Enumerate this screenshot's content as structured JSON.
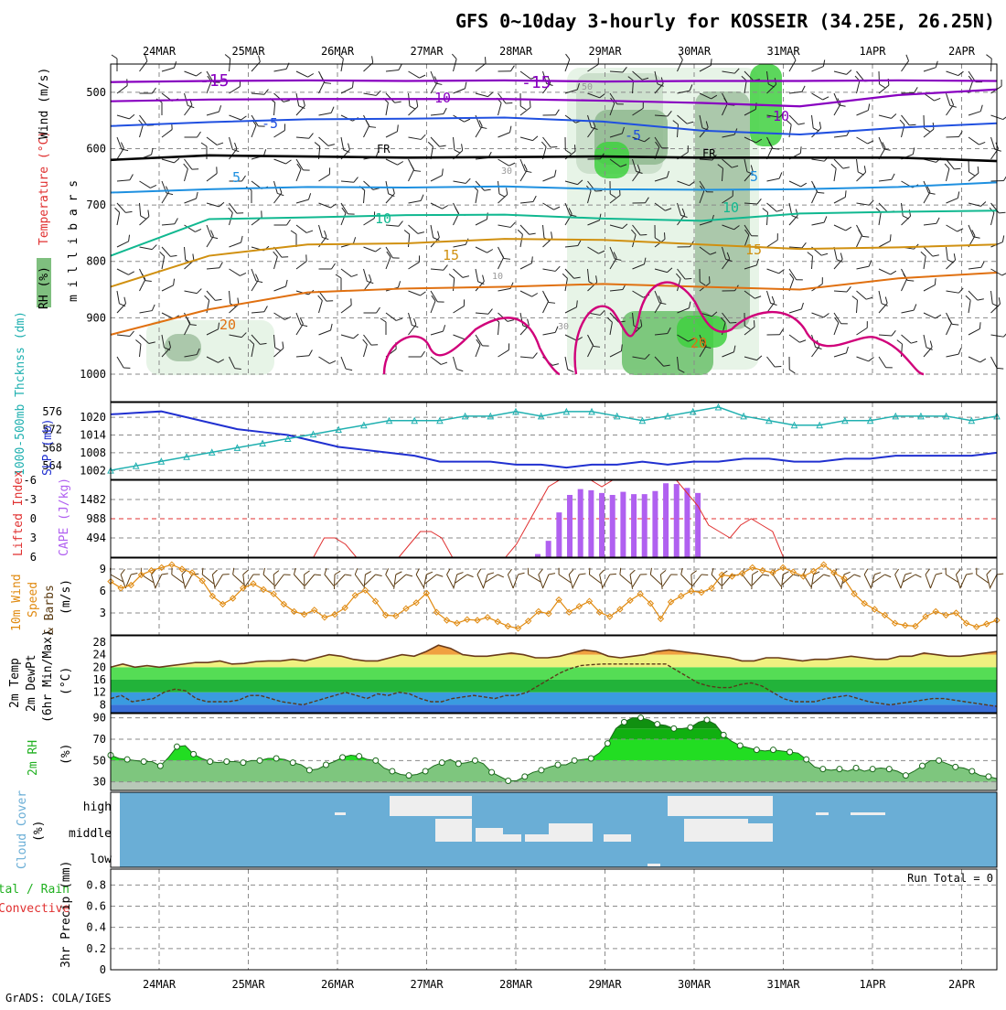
{
  "title": "GFS 0~10day 3-hourly for KOSSEIR (34.25E, 26.25N)",
  "footer": "GrADS: COLA/IGES",
  "dates": [
    "24MAR",
    "25MAR",
    "26MAR",
    "27MAR",
    "28MAR",
    "29MAR",
    "30MAR",
    "31MAR",
    "1APR",
    "2APR"
  ],
  "colors": {
    "frame": "#000000",
    "rh_dark": "#8aa88a",
    "rh_mid": "#6ed06e",
    "rh_bright": "#22cc22",
    "temp_m15": "#8800c0",
    "temp_m10": "#8800c0",
    "temp_m5": "#2050e0",
    "temp_0": "#000000",
    "temp_5": "#1e90e0",
    "temp_10": "#10b890",
    "temp_15": "#d09010",
    "temp_20": "#e07010",
    "temp_25": "#d0007a",
    "slp": "#2030d0",
    "thickness": "#20b0b0",
    "lifted_index": "#e03030",
    "cape": "#b060f0",
    "wind10m": "#e08a10",
    "barb": "#5a3a10",
    "cloud_bg": "#6aaed6",
    "cloud_gap": "#eeeeee"
  },
  "chart_data": [
    {
      "type": "heatmap",
      "panel": "upper-air",
      "ylabel_parts": [
        "RH (%)",
        "Temperature (°C)",
        "Wind (m/s)"
      ],
      "yaxis_name": "m i l l i b a r s",
      "yticks": [
        500,
        600,
        700,
        800,
        900,
        1000
      ],
      "ylim": [
        1000,
        450
      ],
      "contour_labels": {
        "m15": [
          "-15",
          "-15"
        ],
        "m10": [
          "-10",
          "-10"
        ],
        "m5": [
          "-5",
          "-5"
        ],
        "zero": [
          "FR",
          "FR"
        ],
        "p5": [
          "5",
          "5"
        ],
        "p10": [
          "10",
          "10"
        ],
        "p15": [
          "15",
          "15"
        ],
        "p20": [
          "20",
          "20"
        ],
        "rh": [
          "50",
          "30",
          "10",
          "30"
        ]
      },
      "isotherms": {
        "m15_mb": [
          482,
          480,
          479,
          480,
          479,
          481,
          480,
          480,
          479,
          480
        ],
        "m10_mb": [
          516,
          513,
          512,
          512,
          512,
          515,
          519,
          525,
          505,
          495
        ],
        "m5_mb": [
          560,
          553,
          548,
          547,
          545,
          552,
          568,
          575,
          563,
          555
        ],
        "zero_mb": [
          620,
          612,
          614,
          616,
          615,
          614,
          616,
          616,
          616,
          622
        ],
        "p5_mb": [
          678,
          672,
          668,
          669,
          667,
          672,
          673,
          672,
          668,
          660
        ],
        "p10_mb": [
          790,
          725,
          722,
          718,
          717,
          724,
          728,
          715,
          712,
          710
        ],
        "p15_mb": [
          845,
          790,
          770,
          768,
          760,
          762,
          770,
          778,
          775,
          770
        ],
        "p20_mb": [
          930,
          885,
          855,
          848,
          845,
          840,
          845,
          850,
          830,
          820
        ]
      }
    },
    {
      "type": "line",
      "panel": "slp-thickness",
      "ylabel_left": "1000-500mb Thcknss (dm)",
      "ylabel_right": "SLP (mb)",
      "yticks_left": [
        564,
        568,
        572,
        576
      ],
      "yticks_right": [
        1002,
        1008,
        1014,
        1020
      ],
      "series": [
        {
          "name": "SLP (mb)",
          "values": [
            1021,
            1021.5,
            1022,
            1020,
            1018,
            1016,
            1015,
            1014,
            1012,
            1010,
            1009,
            1008,
            1007,
            1005,
            1005,
            1005,
            1004,
            1004,
            1003,
            1004,
            1004,
            1005,
            1004,
            1005,
            1005,
            1006,
            1006,
            1005,
            1005,
            1006,
            1006,
            1007,
            1007,
            1007,
            1007,
            1008
          ]
        },
        {
          "name": "1000-500mb Thickness (dm)",
          "values": [
            563,
            564,
            565,
            566,
            567,
            568,
            569,
            570,
            571,
            572,
            573,
            574,
            574,
            574,
            575,
            575,
            576,
            575,
            576,
            576,
            575,
            574,
            575,
            576,
            577,
            575,
            574,
            573,
            573,
            574,
            574,
            575,
            575,
            575,
            574,
            575
          ]
        }
      ]
    },
    {
      "type": "bar",
      "panel": "cape-li",
      "ylabel_left": "Lifted Index",
      "ylabel_right": "CAPE (J/kg)",
      "yticks_li": [
        "-6",
        "-3",
        "0",
        "3",
        "6"
      ],
      "yticks_cape": [
        "1482",
        "988",
        "494"
      ],
      "series": [
        {
          "name": "Lifted Index",
          "values": [
            6,
            6,
            6,
            6,
            6,
            6,
            6,
            6,
            6,
            6,
            6,
            6,
            6,
            6,
            6,
            6,
            6,
            6,
            6,
            6,
            3,
            3,
            4,
            6,
            6,
            6,
            6,
            6,
            4,
            2,
            2,
            3,
            6,
            6,
            6,
            6,
            6,
            6,
            4,
            1,
            -2,
            -5,
            -6,
            -6,
            -6,
            -6,
            -5,
            -6,
            -6,
            -6,
            -6,
            -6,
            -6,
            -6,
            -4,
            -2,
            1,
            2,
            3,
            1,
            0,
            1,
            2,
            6,
            6,
            6,
            6,
            6,
            6,
            6,
            6,
            6,
            6,
            6,
            6,
            6,
            6,
            6,
            6,
            6,
            6,
            6,
            6,
            6
          ]
        },
        {
          "name": "CAPE (J/kg)",
          "values": [
            0,
            0,
            0,
            0,
            0,
            0,
            0,
            0,
            0,
            0,
            0,
            0,
            0,
            0,
            0,
            0,
            0,
            0,
            0,
            0,
            0,
            0,
            0,
            0,
            0,
            0,
            0,
            0,
            0,
            0,
            0,
            0,
            0,
            0,
            0,
            0,
            0,
            0,
            0,
            0,
            80,
            420,
            1150,
            1600,
            1750,
            1720,
            1650,
            1600,
            1680,
            1620,
            1620,
            1700,
            1900,
            1880,
            1780,
            1650,
            0,
            0,
            0,
            0,
            0,
            0,
            0,
            0,
            0,
            0,
            0,
            0,
            0,
            0,
            0,
            0,
            0,
            0,
            0,
            0,
            0,
            0,
            0,
            0,
            0,
            0,
            0,
            0
          ]
        }
      ]
    },
    {
      "type": "line",
      "panel": "wind10m",
      "ylabel_parts": [
        "10m Wind",
        "Speed",
        "& Barbs",
        "(m/s)"
      ],
      "yticks": [
        3,
        6,
        9
      ],
      "ylim": [
        0,
        10.5
      ],
      "series": [
        {
          "name": "10m Wind Speed",
          "values": [
            7.3,
            6.4,
            6.8,
            8.2,
            8.8,
            9.2,
            9.6,
            9.0,
            8.5,
            7.4,
            5.3,
            4.2,
            5.0,
            6.4,
            7.0,
            6.2,
            5.6,
            4.2,
            3.2,
            2.8,
            3.4,
            2.4,
            2.8,
            3.7,
            5.4,
            6.1,
            4.6,
            2.7,
            2.6,
            3.6,
            4.4,
            5.7,
            3.1,
            2.0,
            1.6,
            2.1,
            2.0,
            2.4,
            1.8,
            1.2,
            0.9,
            1.9,
            3.2,
            2.9,
            4.8,
            3.1,
            3.9,
            4.6,
            3.1,
            2.5,
            3.5,
            4.7,
            5.6,
            4.3,
            2.2,
            4.5,
            5.3,
            6.0,
            5.8,
            6.4,
            8.2,
            8.0,
            8.4,
            9.2,
            8.8,
            8.5,
            9.2,
            8.6,
            8.0,
            8.7,
            9.6,
            8.5,
            7.7,
            5.6,
            4.3,
            3.5,
            2.7,
            1.6,
            1.3,
            1.2,
            2.5,
            3.2,
            2.7,
            3.0,
            1.6,
            1.1,
            1.5,
            2.0
          ]
        }
      ]
    },
    {
      "type": "area",
      "panel": "temp2m",
      "ylabel_parts": [
        "2m Temp",
        "2m DewPt",
        "(6hr Min/Max)",
        "(°C)"
      ],
      "yticks": [
        8,
        12,
        16,
        20,
        24,
        28
      ],
      "series": [
        {
          "name": "2m Temp",
          "values": [
            20,
            21,
            20,
            20.5,
            20,
            20.5,
            21,
            21.5,
            21.5,
            22,
            21,
            21.2,
            21.8,
            22,
            22,
            22.5,
            22,
            23,
            24,
            23.5,
            22.5,
            22,
            22,
            23,
            24,
            23.5,
            25,
            27,
            26,
            24,
            23.5,
            23.5,
            24,
            24.5,
            24,
            23,
            23,
            23.5,
            24.5,
            25.5,
            25,
            23.5,
            23,
            23.5,
            24,
            25,
            25.5,
            25,
            24.5,
            24,
            23.5,
            23,
            22,
            22,
            23,
            23,
            22.5,
            22,
            22.5,
            22.5,
            23,
            23.5,
            23,
            22.5,
            22.5,
            23.5,
            23.5,
            24.5,
            24,
            23.5,
            23.5,
            24,
            24.5,
            25
          ]
        },
        {
          "name": "2m DewPt",
          "values": [
            10,
            11,
            9,
            9.5,
            10,
            12,
            13,
            12.5,
            10,
            9,
            9,
            9,
            9.5,
            11,
            11,
            10,
            9,
            8.5,
            8,
            9,
            10,
            11,
            12,
            11,
            10,
            11.5,
            11,
            12,
            11.5,
            10,
            9,
            9,
            10,
            10.5,
            11,
            10.5,
            10,
            11,
            11,
            12,
            14,
            16,
            18,
            19.5,
            20.5,
            20.8,
            21,
            21,
            21,
            21,
            21,
            21,
            21,
            19,
            17,
            15,
            14,
            13.5,
            13.5,
            14.5,
            15,
            14,
            12,
            10,
            9,
            9,
            9,
            10,
            10.5,
            11,
            10,
            9,
            8.5,
            8,
            8.5,
            9,
            9.5,
            10,
            10,
            9.5,
            9,
            8.5,
            8,
            7.5
          ]
        }
      ]
    },
    {
      "type": "area",
      "panel": "rh2m",
      "ylabel_parts": [
        "2m RH",
        "(%)"
      ],
      "yticks": [
        30,
        50,
        70,
        90
      ],
      "series": [
        {
          "name": "2m RH",
          "values": [
            55,
            52,
            51,
            50,
            49,
            49,
            45,
            53,
            63,
            64,
            56,
            52,
            49,
            48,
            49,
            49,
            48,
            50,
            50,
            52,
            52,
            51,
            48,
            46,
            41,
            42,
            46,
            49,
            53,
            55,
            54,
            51,
            50,
            43,
            40,
            37,
            36,
            37,
            40,
            45,
            48,
            51,
            47,
            48,
            50,
            47,
            39,
            35,
            31,
            31,
            35,
            39,
            41,
            44,
            46,
            46,
            50,
            51,
            52,
            57,
            66,
            80,
            86,
            90,
            90,
            88,
            84,
            83,
            80,
            80,
            81,
            86,
            88,
            84,
            74,
            68,
            64,
            62,
            60,
            59,
            60,
            59,
            58,
            57,
            51,
            44,
            42,
            41,
            42,
            40,
            43,
            40,
            42,
            43,
            42,
            40,
            36,
            40,
            45,
            50,
            50,
            47,
            44,
            43,
            40,
            36,
            35,
            33
          ]
        }
      ]
    },
    {
      "type": "heatmap",
      "panel": "cloud",
      "ylabel_parts": [
        "Cloud Cover",
        "(%)"
      ],
      "rows": [
        "high",
        "middle",
        "low"
      ]
    },
    {
      "type": "bar",
      "panel": "precip",
      "ylabel_parts": [
        "Total / Rain",
        "Convective",
        "3hr Precip (mm)"
      ],
      "yticks": [
        "0.2",
        "0.4",
        "0.6",
        "0.8"
      ],
      "zero_label": "0",
      "run_total_label": "Run Total = 0",
      "ylim": [
        0,
        0.95
      ],
      "values": []
    }
  ]
}
